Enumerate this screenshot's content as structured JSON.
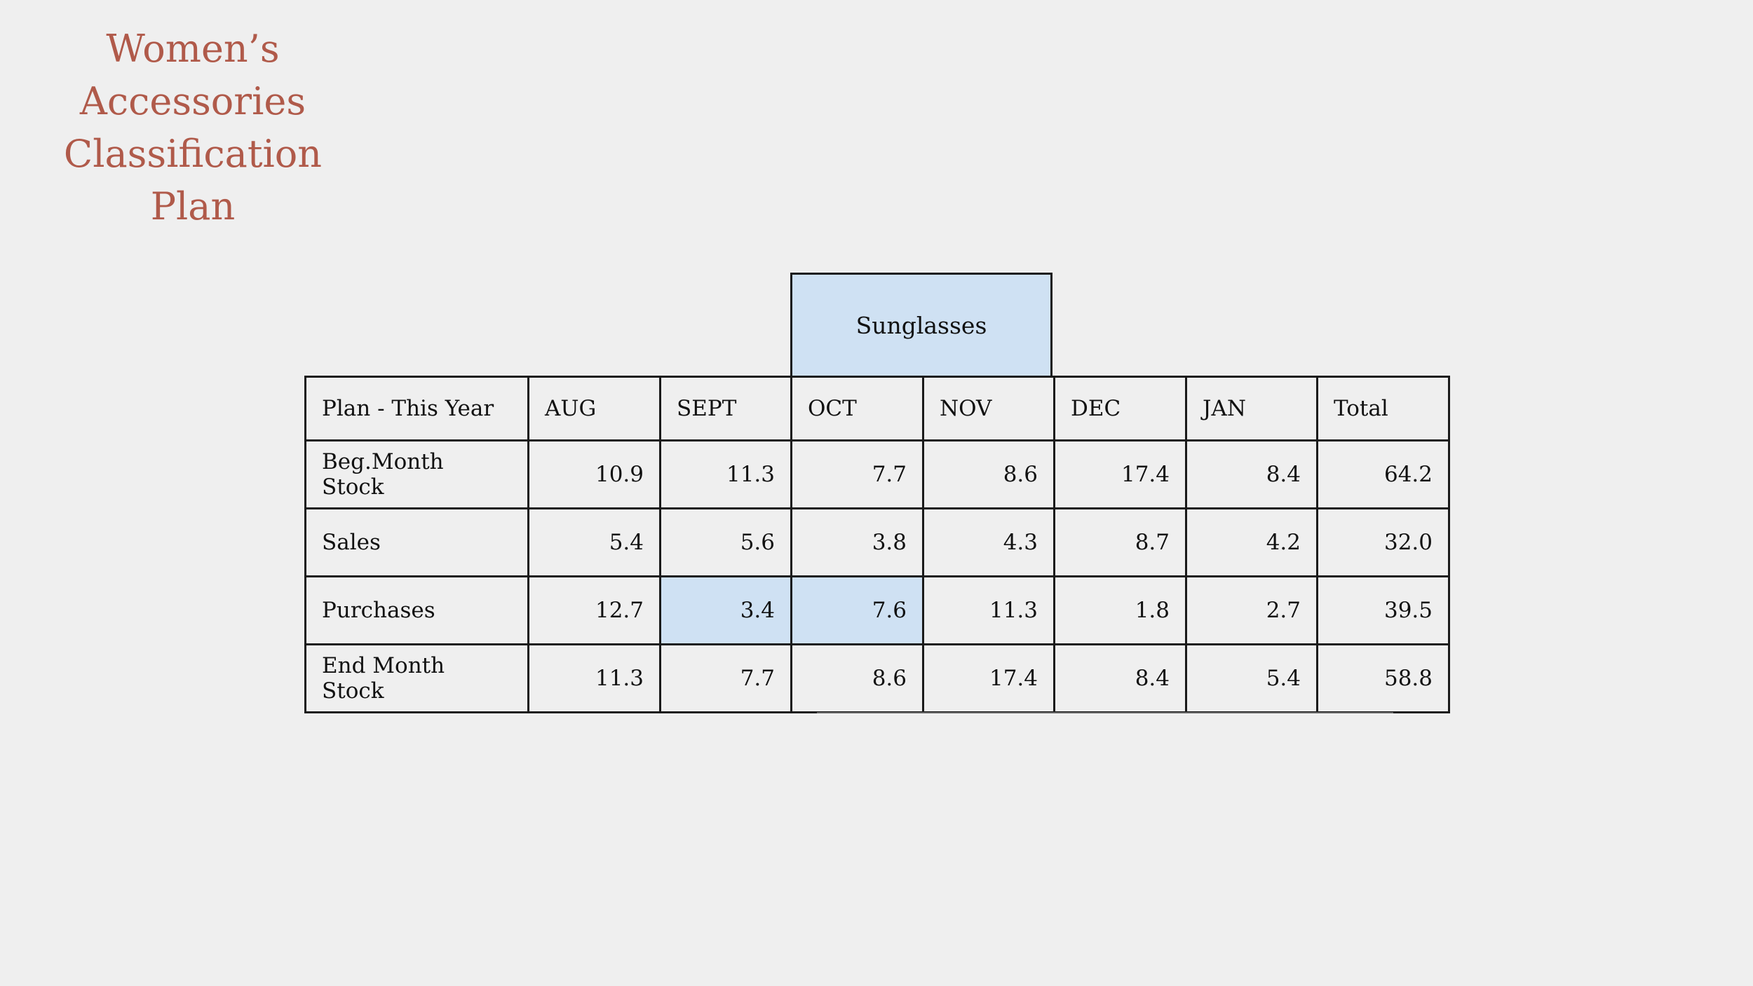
{
  "title": {
    "line1": "Women’s",
    "line2": "Accessories",
    "line3": "Classification Plan"
  },
  "category": "Sunglasses",
  "table": {
    "headers": [
      "Plan - This Year",
      "AUG",
      "SEPT",
      "OCT",
      "NOV",
      "DEC",
      "JAN",
      "Total"
    ],
    "rows": [
      {
        "label": "Beg.Month Stock",
        "values": [
          "10.9",
          "11.3",
          "7.7",
          "8.6",
          "17.4",
          "8.4",
          "64.2"
        ]
      },
      {
        "label": "Sales",
        "values": [
          "5.4",
          "5.6",
          "3.8",
          "4.3",
          "8.7",
          "4.2",
          "32.0"
        ]
      },
      {
        "label": "Purchases",
        "values": [
          "12.7",
          "3.4",
          "7.6",
          "11.3",
          "1.8",
          "2.7",
          "39.5"
        ]
      },
      {
        "label": "End Month Stock",
        "values": [
          "11.3",
          "7.7",
          "8.6",
          "17.4",
          "8.4",
          "5.4",
          "58.8"
        ]
      }
    ]
  },
  "colors": {
    "title": "#b05a4a",
    "highlight": "#cfe1f3",
    "background": "#efefef"
  }
}
